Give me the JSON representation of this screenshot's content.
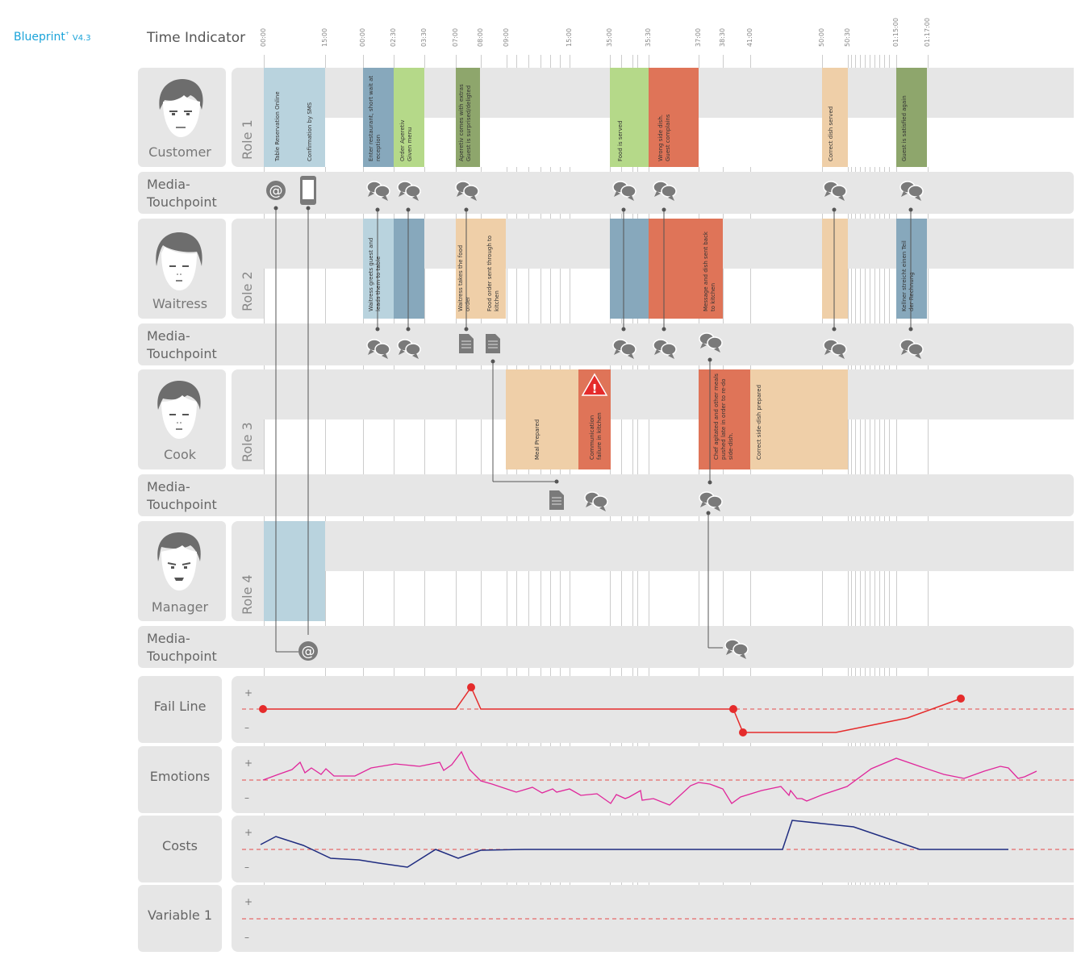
{
  "header": {
    "brand": "Blueprint",
    "brand_sup": "+",
    "version": "V4.3",
    "time_indicator_label": "Time Indicator"
  },
  "ticks": [
    "00:00",
    "15:00",
    "00:00",
    "02:30",
    "03:30",
    "07:00",
    "08:00",
    "09:00",
    "15:00",
    "35:00",
    "35:30",
    "37:00",
    "38:30",
    "41:00",
    "50:00",
    "50:30",
    "01:15:00",
    "01:17:00"
  ],
  "personas": [
    {
      "name": "Customer",
      "role": "Role 1"
    },
    {
      "name": "Waitress",
      "role": "Role 2"
    },
    {
      "name": "Cook",
      "role": "Role 3"
    },
    {
      "name": "Manager",
      "role": "Role 4"
    }
  ],
  "touchpoint_label": "Media-\nTouchpoint",
  "role1_blocks": [
    {
      "text": "Table Reservation Online"
    },
    {
      "text": "Confirmation by SMS"
    },
    {
      "text": "Enter restaurant, short wait at reception"
    },
    {
      "text": "Order Aperetiv Given menu"
    },
    {
      "text": "Aperetiv comes with extras Guest is surprised/deligted"
    },
    {
      "text": "Food is served"
    },
    {
      "text": "Wrong side dish. Guest complains"
    },
    {
      "text": "Correct dish served"
    },
    {
      "text": "Guest is satisfied again"
    }
  ],
  "role2_blocks": [
    {
      "text": "Waitress greets guest and leads them to table"
    },
    {
      "text": "Waitress takes the food order"
    },
    {
      "text": "Food order sent through to kitchen"
    },
    {
      "text": "Message and dish sent back to kitchen"
    },
    {
      "text": "Kellner streicht einen Teil der Rechnung"
    }
  ],
  "role3_blocks": [
    {
      "text": "Meal Prepared"
    },
    {
      "text": "Communication failure in kitchen"
    },
    {
      "text": "Chef agitated and other meals pushed late in order to re-do side-dish."
    },
    {
      "text": "Correct side-dish prepared"
    }
  ],
  "metrics": [
    {
      "name": "Fail Line",
      "plus": "+",
      "minus": "–"
    },
    {
      "name": "Emotions",
      "plus": "+",
      "minus": "–"
    },
    {
      "name": "Costs",
      "plus": "+",
      "minus": "–"
    },
    {
      "name": "Variable 1",
      "plus": "+",
      "minus": "–"
    }
  ],
  "colors": {
    "lane_bg": "#e6e6e6",
    "light_blue": "#b9d3de",
    "steel_blue": "#87a8bc",
    "light_green": "#b5d989",
    "olive_green": "#8ea66c",
    "peach": "#efcfa8",
    "red_orange": "#df7458",
    "fail_line": "#e52b2b",
    "emotions_line": "#e0279b",
    "costs_line": "#1f2c80"
  },
  "icons": [
    "at-sign-icon",
    "smartphone-icon",
    "speech-bubbles-icon",
    "document-icon",
    "warning-icon"
  ]
}
